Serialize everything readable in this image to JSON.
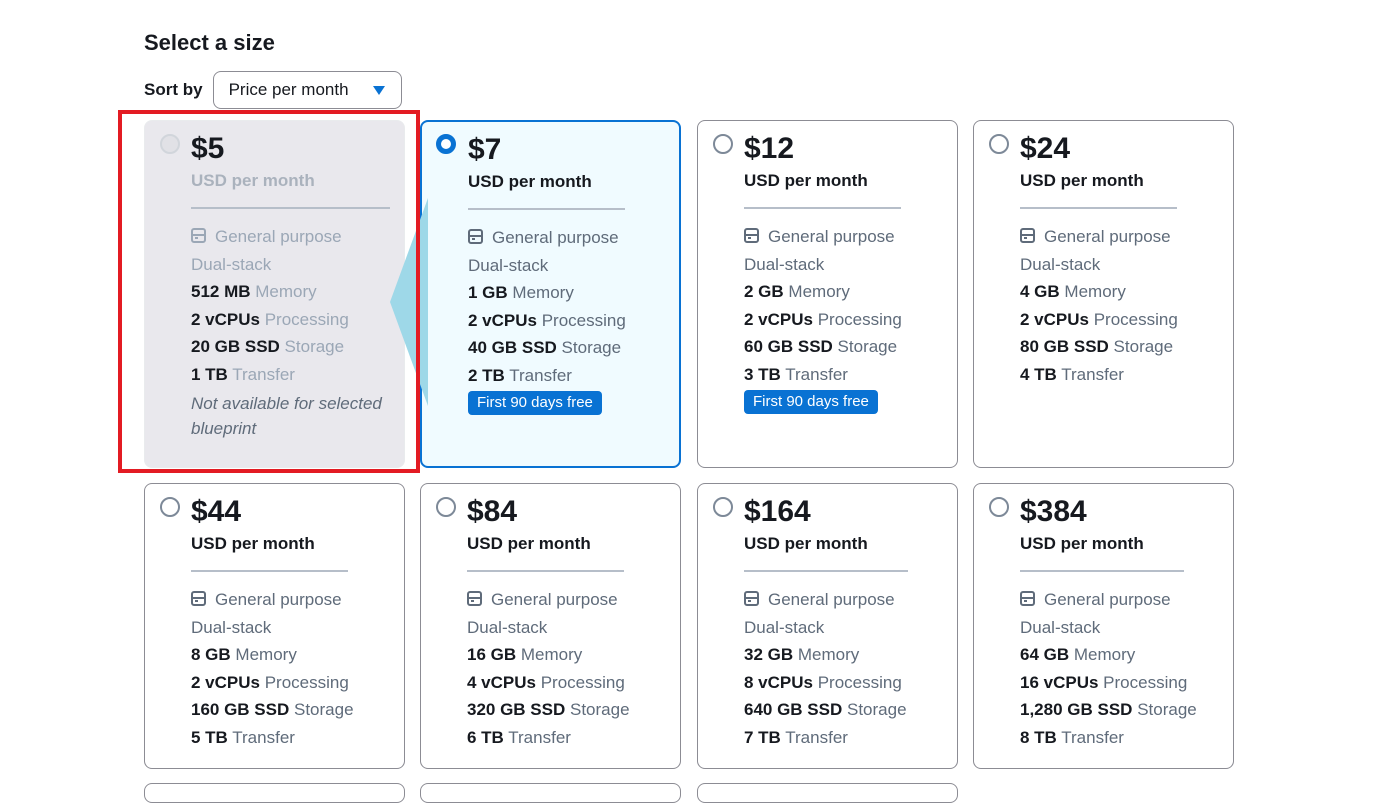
{
  "header": {
    "title": "Select a size"
  },
  "sort": {
    "label": "Sort by",
    "selected": "Price per month"
  },
  "icons": {
    "category": "server-icon",
    "dropdown": "caret-down-icon"
  },
  "colors": {
    "accent": "#0972d3",
    "highlight": "#e31b23",
    "arrow": "#9ed8e8"
  },
  "plans": [
    {
      "price": "$5",
      "unit": "USD per month",
      "type": "General purpose",
      "network": "Dual-stack",
      "memory": "512 MB",
      "memory_label": "Memory",
      "vcpus": "2 vCPUs",
      "vcpus_label": "Processing",
      "storage": "20 GB SSD",
      "storage_label": "Storage",
      "transfer": "1 TB",
      "transfer_label": "Transfer",
      "note": "Not available for selected blueprint",
      "state": "disabled"
    },
    {
      "price": "$7",
      "unit": "USD per month",
      "type": "General purpose",
      "network": "Dual-stack",
      "memory": "1 GB",
      "memory_label": "Memory",
      "vcpus": "2 vCPUs",
      "vcpus_label": "Processing",
      "storage": "40 GB SSD",
      "storage_label": "Storage",
      "transfer": "2 TB",
      "transfer_label": "Transfer",
      "badge": "First 90 days free",
      "state": "selected"
    },
    {
      "price": "$12",
      "unit": "USD per month",
      "type": "General purpose",
      "network": "Dual-stack",
      "memory": "2 GB",
      "memory_label": "Memory",
      "vcpus": "2 vCPUs",
      "vcpus_label": "Processing",
      "storage": "60 GB SSD",
      "storage_label": "Storage",
      "transfer": "3 TB",
      "transfer_label": "Transfer",
      "badge": "First 90 days free",
      "state": "available"
    },
    {
      "price": "$24",
      "unit": "USD per month",
      "type": "General purpose",
      "network": "Dual-stack",
      "memory": "4 GB",
      "memory_label": "Memory",
      "vcpus": "2 vCPUs",
      "vcpus_label": "Processing",
      "storage": "80 GB SSD",
      "storage_label": "Storage",
      "transfer": "4 TB",
      "transfer_label": "Transfer",
      "state": "available"
    },
    {
      "price": "$44",
      "unit": "USD per month",
      "type": "General purpose",
      "network": "Dual-stack",
      "memory": "8 GB",
      "memory_label": "Memory",
      "vcpus": "2 vCPUs",
      "vcpus_label": "Processing",
      "storage": "160 GB SSD",
      "storage_label": "Storage",
      "transfer": "5 TB",
      "transfer_label": "Transfer",
      "state": "available"
    },
    {
      "price": "$84",
      "unit": "USD per month",
      "type": "General purpose",
      "network": "Dual-stack",
      "memory": "16 GB",
      "memory_label": "Memory",
      "vcpus": "4 vCPUs",
      "vcpus_label": "Processing",
      "storage": "320 GB SSD",
      "storage_label": "Storage",
      "transfer": "6 TB",
      "transfer_label": "Transfer",
      "state": "available"
    },
    {
      "price": "$164",
      "unit": "USD per month",
      "type": "General purpose",
      "network": "Dual-stack",
      "memory": "32 GB",
      "memory_label": "Memory",
      "vcpus": "8 vCPUs",
      "vcpus_label": "Processing",
      "storage": "640 GB SSD",
      "storage_label": "Storage",
      "transfer": "7 TB",
      "transfer_label": "Transfer",
      "state": "available"
    },
    {
      "price": "$384",
      "unit": "USD per month",
      "type": "General purpose",
      "network": "Dual-stack",
      "memory": "64 GB",
      "memory_label": "Memory",
      "vcpus": "16 vCPUs",
      "vcpus_label": "Processing",
      "storage": "1,280 GB SSD",
      "storage_label": "Storage",
      "transfer": "8 TB",
      "transfer_label": "Transfer",
      "state": "available"
    }
  ]
}
